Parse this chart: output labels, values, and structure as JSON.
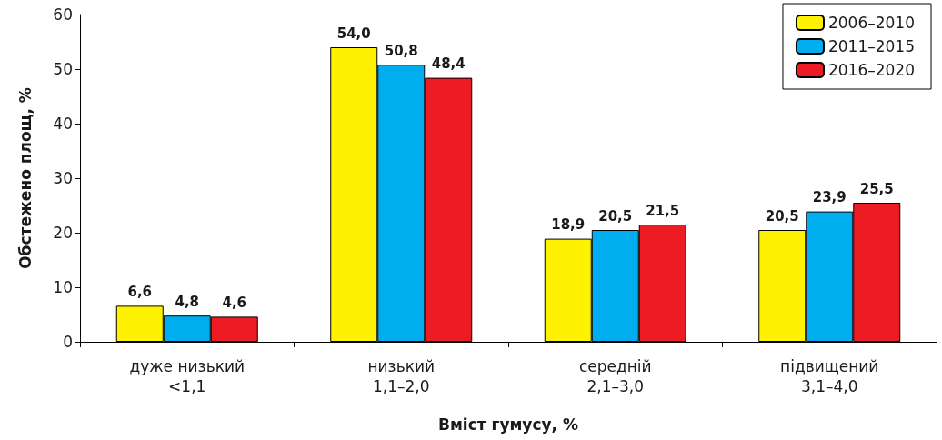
{
  "chart_data": {
    "type": "bar",
    "categories": [
      "дуже низький\n<1,1",
      "низький\n1,1–2,0",
      "середній\n2,1–3,0",
      "підвищений\n3,1–4,0"
    ],
    "series": [
      {
        "name": "2006–2010",
        "color": "#fff200",
        "values": [
          6.6,
          54.0,
          18.9,
          20.5
        ],
        "value_labels": [
          "6,6",
          "54,0",
          "18,9",
          "20,5"
        ]
      },
      {
        "name": "2011–2015",
        "color": "#00aeef",
        "values": [
          4.8,
          50.8,
          20.5,
          23.9
        ],
        "value_labels": [
          "4,8",
          "50,8",
          "20,5",
          "23,9"
        ]
      },
      {
        "name": "2016–2020",
        "color": "#ed1c24",
        "values": [
          4.6,
          48.4,
          21.5,
          25.5
        ],
        "value_labels": [
          "4,6",
          "48,4",
          "21,5",
          "25,5"
        ]
      }
    ],
    "xlabel": "Вміст гумусу, %",
    "ylabel": "Обстежено площ, %",
    "ylim": [
      0,
      60
    ],
    "yticks": [
      0,
      10,
      20,
      30,
      40,
      50,
      60
    ],
    "grid": false,
    "legend": "top right"
  }
}
